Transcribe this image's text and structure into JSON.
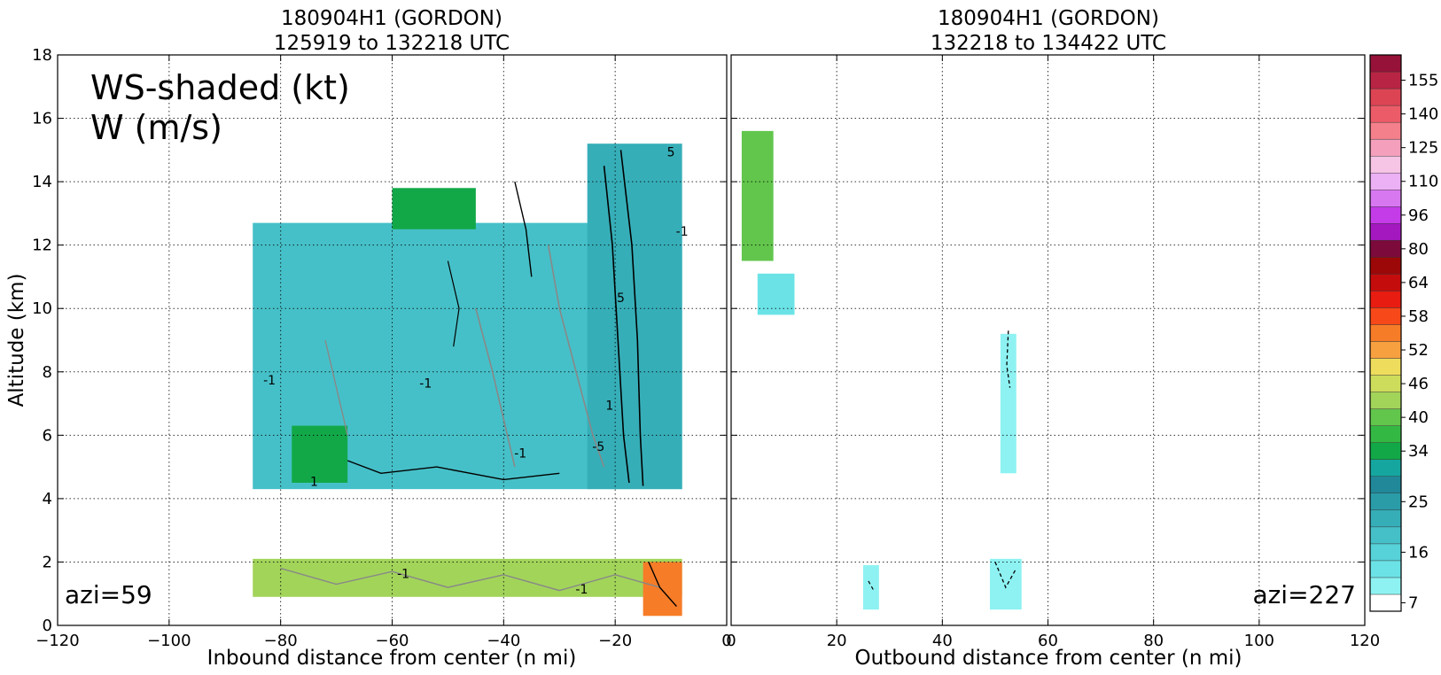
{
  "chart_data": [
    {
      "type": "heatmap",
      "title": "180904H1 (GORDON)",
      "subtitle": "125919 to 132218 UTC",
      "xlabel": "Inbound distance from center (n mi)",
      "ylabel": "Altitude (km)",
      "xlim": [
        -120,
        0
      ],
      "ylim": [
        0,
        18
      ],
      "xticks": [
        "−120",
        "−100",
        "−80",
        "−60",
        "−40",
        "−20",
        "0"
      ],
      "yticks": [
        "0",
        "2",
        "4",
        "6",
        "8",
        "10",
        "12",
        "14",
        "16",
        "18"
      ],
      "grid": true,
      "annotations": {
        "legend_line1": "WS-shaded (kt)",
        "legend_line2": "W (m/s)",
        "azimuth": "azi=59"
      },
      "contour_labels": [
        "-1",
        "1",
        "-5",
        "5"
      ],
      "regions": [
        {
          "x": [
            -85,
            -8
          ],
          "y": [
            4.3,
            12.7
          ],
          "level": 20
        },
        {
          "x": [
            -25,
            -8
          ],
          "y": [
            4.3,
            15.2
          ],
          "level": 22
        },
        {
          "x": [
            -78,
            -68
          ],
          "y": [
            4.5,
            6.3
          ],
          "level": 36
        },
        {
          "x": [
            -60,
            -45
          ],
          "y": [
            12.5,
            13.8
          ],
          "level": 36
        },
        {
          "x": [
            -85,
            -8
          ],
          "y": [
            0.9,
            2.1
          ],
          "level": 44
        },
        {
          "x": [
            -15,
            -8
          ],
          "y": [
            0.3,
            2.0
          ],
          "level": 55
        }
      ]
    },
    {
      "type": "heatmap",
      "title": "180904H1 (GORDON)",
      "subtitle": "132218 to 134422 UTC",
      "xlabel": "Outbound distance from center (n mi)",
      "xlim": [
        0,
        120
      ],
      "ylim": [
        0,
        18
      ],
      "xticks": [
        "0",
        "20",
        "40",
        "60",
        "80",
        "100",
        "120"
      ],
      "grid": true,
      "annotations": {
        "azimuth": "azi=227"
      },
      "regions": [
        {
          "x": [
            2,
            8
          ],
          "y": [
            11.5,
            15.6
          ],
          "level": 40
        },
        {
          "x": [
            5,
            12
          ],
          "y": [
            9.8,
            11.1
          ],
          "level": 14
        },
        {
          "x": [
            51,
            54
          ],
          "y": [
            4.8,
            9.2
          ],
          "level": 12
        },
        {
          "x": [
            25,
            28
          ],
          "y": [
            0.5,
            1.9
          ],
          "level": 10
        },
        {
          "x": [
            49,
            55
          ],
          "y": [
            0.5,
            2.1
          ],
          "level": 10
        }
      ]
    }
  ],
  "colorbar": {
    "levels": [
      7,
      10,
      13,
      16,
      19,
      22,
      25,
      28,
      31,
      34,
      37,
      40,
      43,
      46,
      49,
      52,
      55,
      58,
      61,
      64,
      72,
      80,
      88,
      96,
      103,
      110,
      118,
      125,
      133,
      140,
      148,
      155,
      160
    ],
    "labels": [
      "7",
      "16",
      "25",
      "34",
      "40",
      "46",
      "52",
      "58",
      "64",
      "80",
      "96",
      "110",
      "125",
      "140",
      "155"
    ],
    "colors": [
      "#ffffff",
      "#8ef2f2",
      "#6be3e6",
      "#56d2d8",
      "#46c0c8",
      "#36aeb8",
      "#2a9ca8",
      "#208898",
      "#16a6a0",
      "#12a848",
      "#34b844",
      "#62c64c",
      "#a2d45a",
      "#cedc5c",
      "#eedc5c",
      "#f6a040",
      "#f67c28",
      "#f64818",
      "#e81c10",
      "#c40c0c",
      "#9c0808",
      "#7c0a3a",
      "#a418c0",
      "#c43ce8",
      "#d878f0",
      "#ecb0f4",
      "#f6c4e4",
      "#f4a0bc",
      "#f4808c",
      "#ec5c68",
      "#dc4454",
      "#b82444",
      "#961238"
    ]
  }
}
